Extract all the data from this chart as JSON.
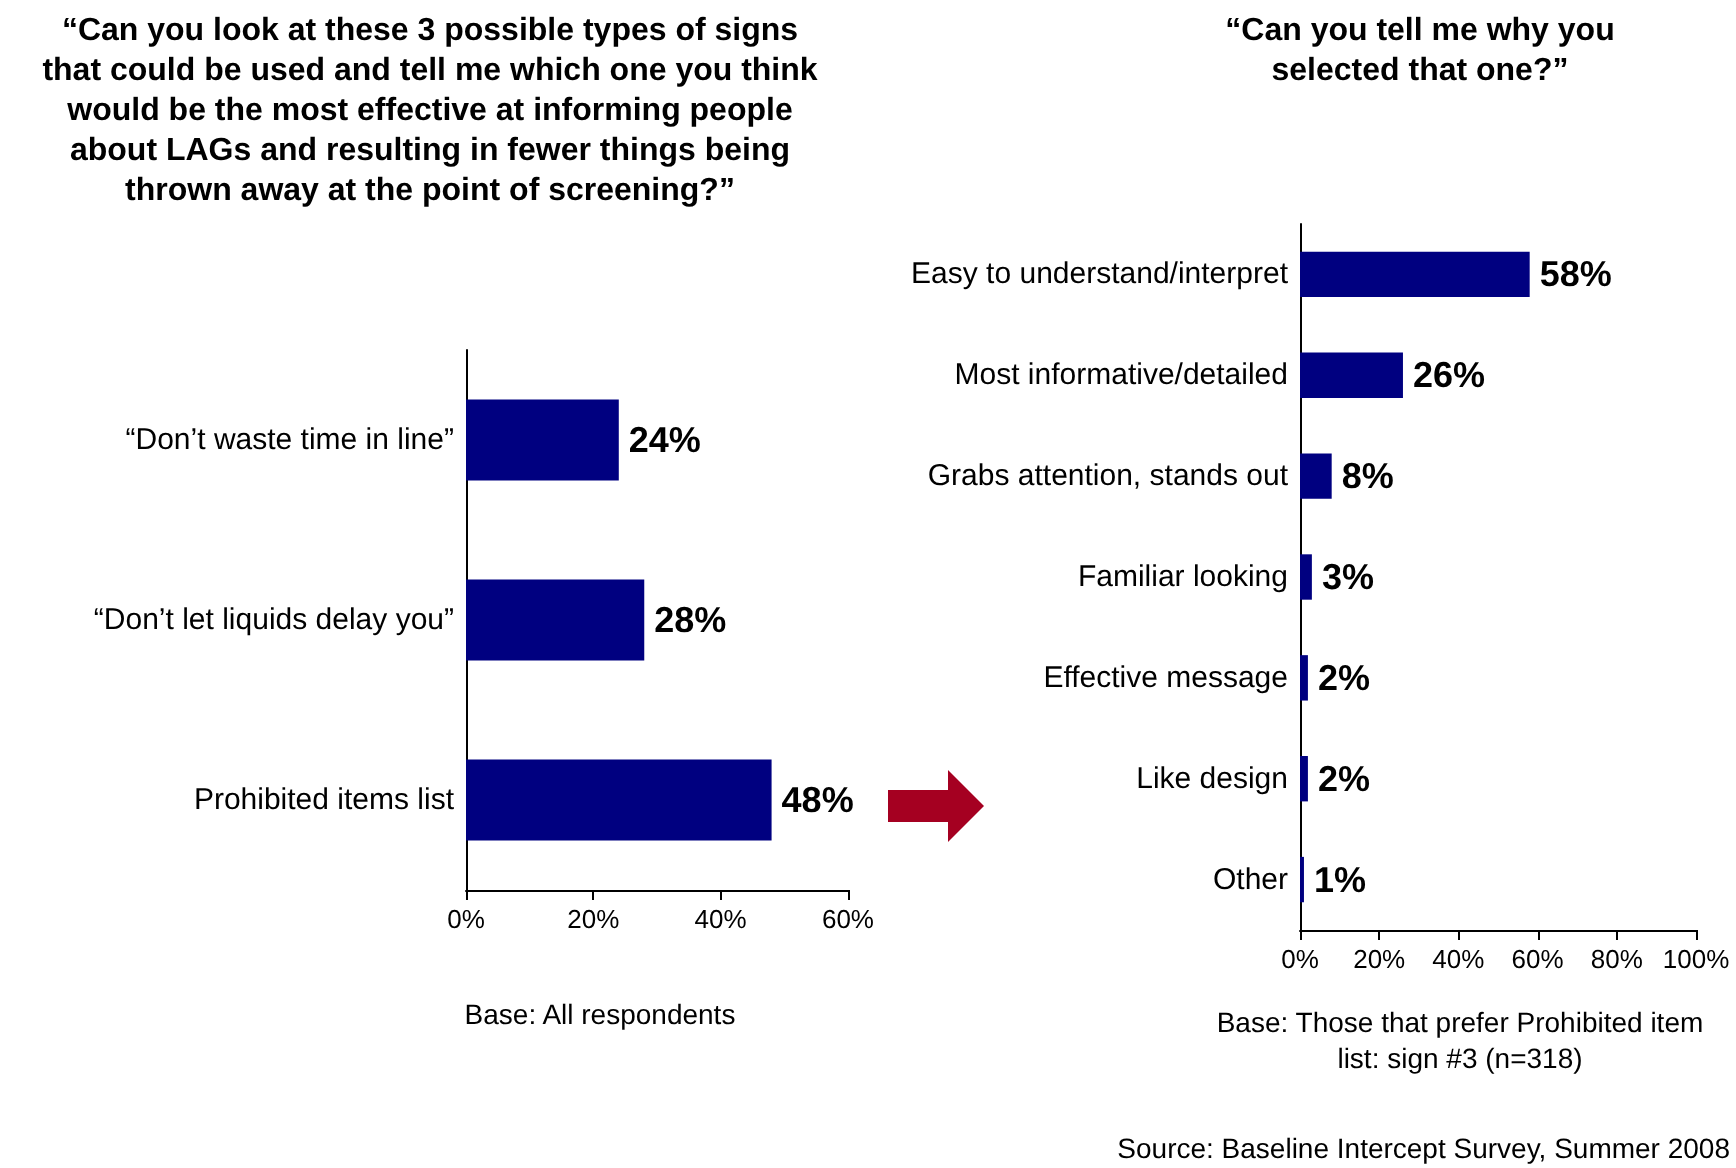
{
  "chart_data": [
    {
      "type": "bar",
      "orientation": "horizontal",
      "title": "“Can you look at these 3 possible types of signs that could be used and tell me which one you think would be the most effective at informing people about LAGs and resulting in fewer things being thrown away at the point of screening?”",
      "categories": [
        "“Don’t waste time in line”",
        "“Don’t let liquids delay you”",
        "Prohibited items list"
      ],
      "values": [
        24,
        28,
        48
      ],
      "value_labels": [
        "24%",
        "28%",
        "48%"
      ],
      "color": "#000080",
      "xlim": [
        0,
        60
      ],
      "xticks": [
        {
          "value": 0,
          "label": "0%"
        },
        {
          "value": 20,
          "label": "20%"
        },
        {
          "value": 40,
          "label": "40%"
        },
        {
          "value": 60,
          "label": "60%"
        }
      ],
      "grid": false,
      "annotations": [
        "Base: All respondents"
      ]
    },
    {
      "type": "bar",
      "orientation": "horizontal",
      "title": "“Can you tell me why you selected that one?”",
      "categories": [
        "Easy to understand/interpret",
        "Most informative/detailed",
        "Grabs attention, stands out",
        "Familiar looking",
        "Effective message",
        "Like design",
        "Other"
      ],
      "values": [
        58,
        26,
        8,
        3,
        2,
        2,
        1
      ],
      "value_labels": [
        "58%",
        "26%",
        "8%",
        "3%",
        "2%",
        "2%",
        "1%"
      ],
      "color": "#000080",
      "xlim": [
        0,
        100
      ],
      "xticks": [
        {
          "value": 0,
          "label": "0%"
        },
        {
          "value": 20,
          "label": "20%"
        },
        {
          "value": 40,
          "label": "40%"
        },
        {
          "value": 60,
          "label": "60%"
        },
        {
          "value": 80,
          "label": "80%"
        },
        {
          "value": 100,
          "label": "100%"
        }
      ],
      "grid": false,
      "annotations": [
        "Base: Those that prefer Prohibited item list: sign #3 (n=318)",
        "Source: Baseline Intercept Survey, Summer 2008"
      ]
    }
  ]
}
